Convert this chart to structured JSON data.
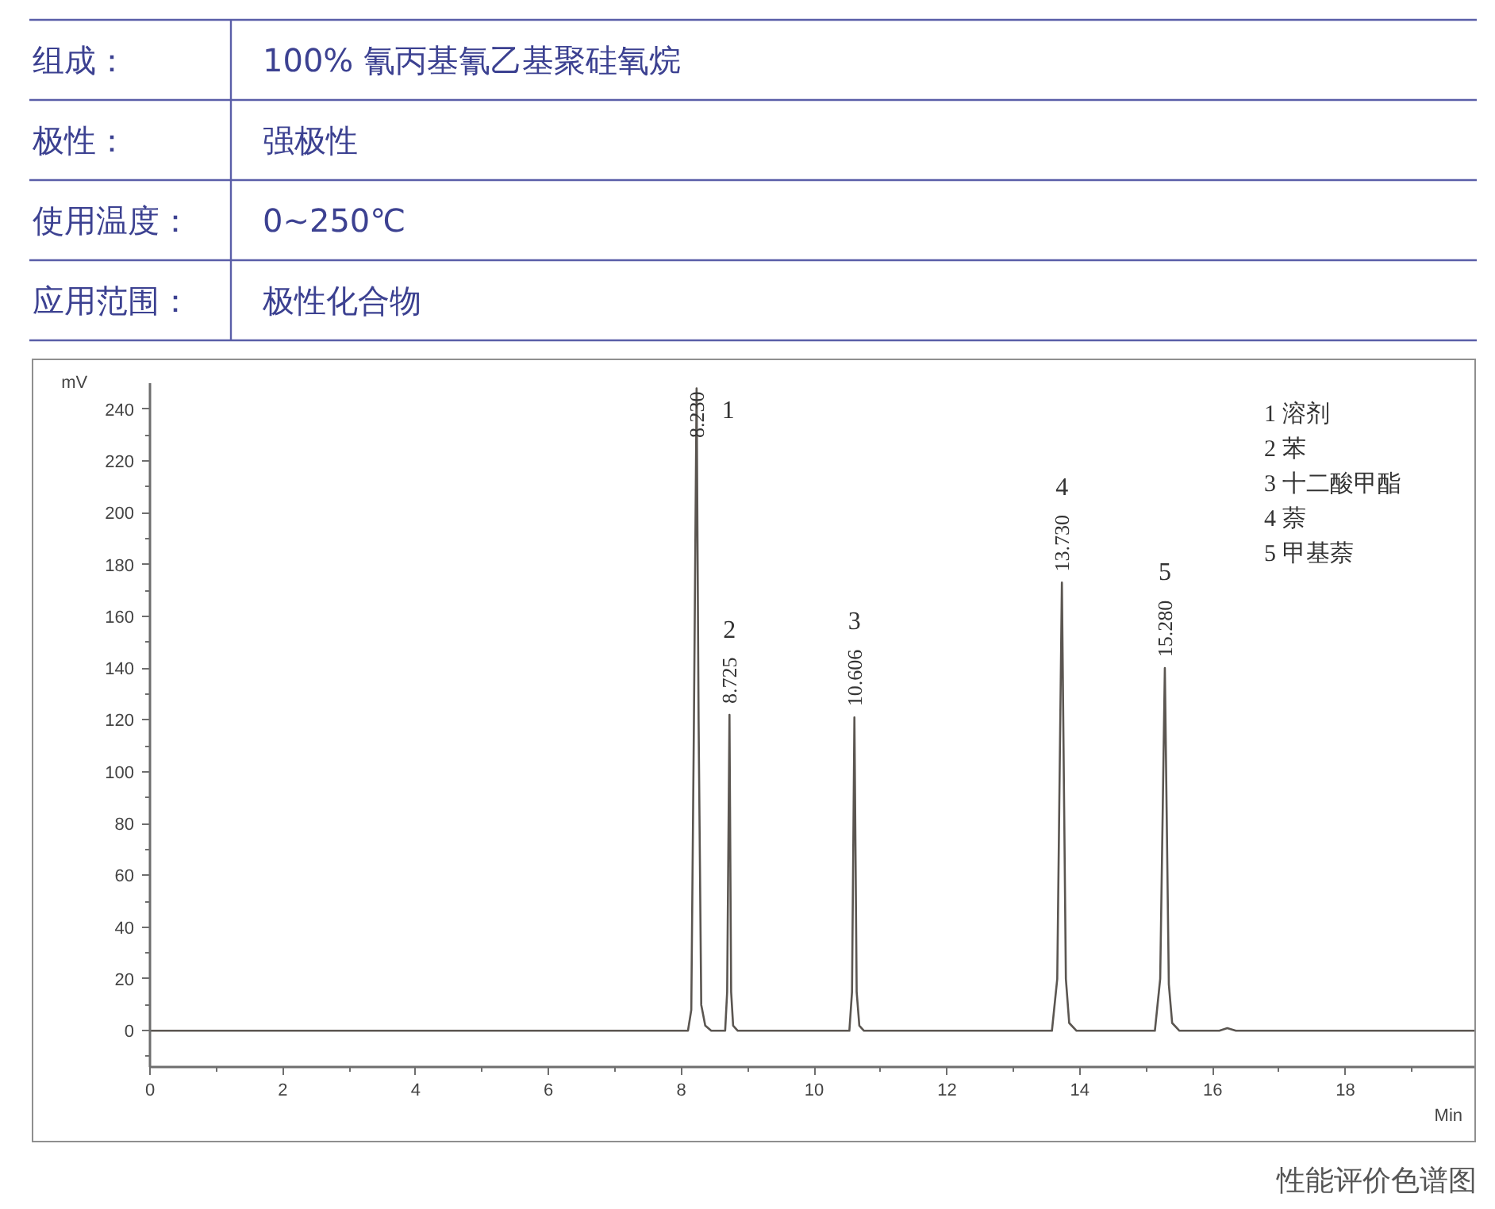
{
  "chart_data": [
    {
      "type": "other",
      "annotations": [
        "组成：",
        "100% 氰丙基氰乙基聚硅氧烷",
        "极性：",
        "强极性",
        "使用温度：",
        "0~250℃",
        "应用范围：",
        "极性化合物"
      ]
    },
    {
      "type": "line",
      "title": "性能评价色谱图",
      "xlabel": "Min",
      "ylabel": "mV",
      "color": "#5b5651",
      "x": [
        0,
        4.8,
        8.1,
        8.15,
        8.19,
        8.23,
        8.26,
        8.3,
        8.36,
        8.45,
        8.66,
        8.69,
        8.725,
        8.75,
        8.78,
        8.85,
        9.5,
        10.53,
        10.57,
        10.606,
        10.64,
        10.68,
        10.75,
        13.58,
        13.66,
        13.73,
        13.79,
        13.84,
        13.95,
        15.13,
        15.21,
        15.28,
        15.34,
        15.39,
        15.5,
        16.1,
        16.22,
        16.35,
        20
      ],
      "values": [
        0,
        0,
        0,
        8,
        120,
        248,
        120,
        10,
        2,
        0,
        0,
        15,
        122,
        15,
        2,
        0,
        0,
        0,
        15,
        121,
        15,
        2,
        0,
        0,
        20,
        173,
        20,
        3,
        0,
        0,
        20,
        140,
        18,
        3,
        0,
        0,
        1,
        0,
        0
      ],
      "xlim": [
        0,
        20
      ],
      "ylim": [
        -14,
        250
      ],
      "xticks": [
        0,
        {
          "value": 1,
          "label": null
        },
        2,
        {
          "value": 3,
          "label": null
        },
        4,
        {
          "value": 5,
          "label": null
        },
        6,
        {
          "value": 7,
          "label": null
        },
        8,
        {
          "value": 9,
          "label": null
        },
        10,
        {
          "value": 11,
          "label": null
        },
        12,
        {
          "value": 13,
          "label": null
        },
        14,
        {
          "value": 15,
          "label": null
        },
        16,
        {
          "value": 17,
          "label": null
        },
        18,
        {
          "value": 19,
          "label": null
        }
      ],
      "yticks": [
        {
          "value": -10,
          "label": null
        },
        0,
        {
          "value": 10,
          "label": null
        },
        20,
        {
          "value": 30,
          "label": null
        },
        40,
        {
          "value": 50,
          "label": null
        },
        60,
        {
          "value": 70,
          "label": null
        },
        80,
        {
          "value": 90,
          "label": null
        },
        100,
        {
          "value": 110,
          "label": null
        },
        120,
        {
          "value": 130,
          "label": null
        },
        140,
        {
          "value": 150,
          "label": null
        },
        160,
        {
          "value": 170,
          "label": null
        },
        180,
        {
          "value": 190,
          "label": null
        },
        200,
        {
          "value": 210,
          "label": null
        },
        220,
        {
          "value": 230,
          "label": null
        },
        240
      ],
      "annotations": [
        {
          "text": "8.230",
          "x": 8.23,
          "y": 248
        },
        {
          "text": "8.725",
          "x": 8.725,
          "y": 122
        },
        {
          "text": "10.606",
          "x": 10.606,
          "y": 121
        },
        {
          "text": "13.730",
          "x": 13.73,
          "y": 173
        },
        {
          "text": "15.280",
          "x": 15.28,
          "y": 140
        },
        "1",
        "2",
        "3",
        "4",
        "5",
        "1 溶剂",
        "2 苯",
        "3 十二酸甲酯",
        "4 萘",
        "5 甲基萘"
      ]
    }
  ]
}
